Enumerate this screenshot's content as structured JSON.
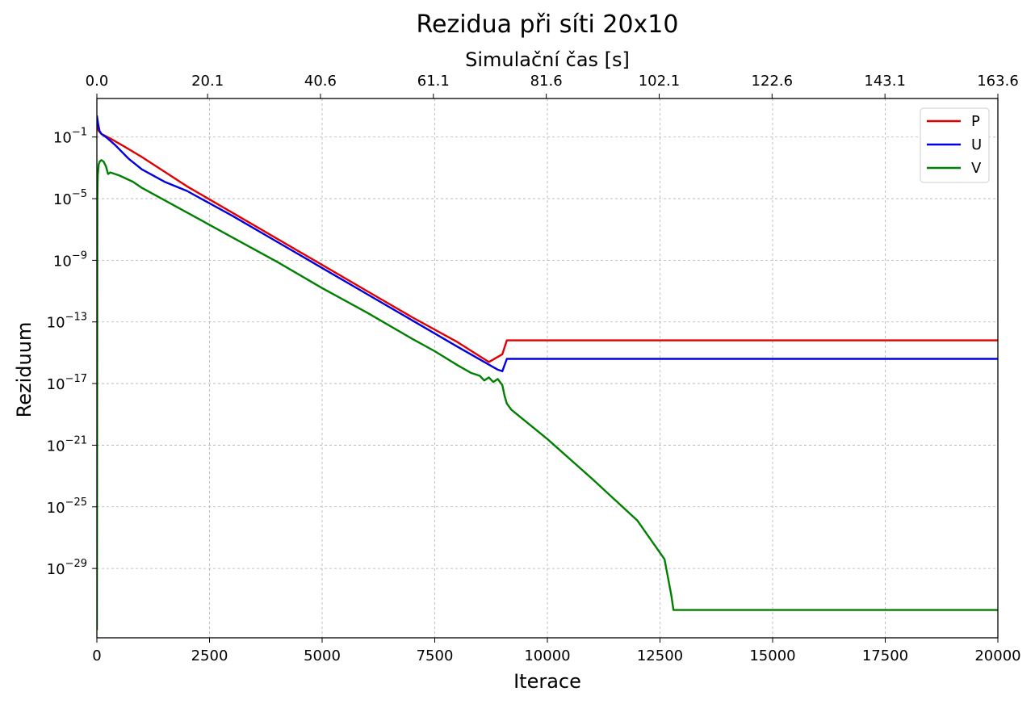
{
  "chart_data": {
    "type": "line",
    "title": "Rezidua při síti 20x10",
    "xlabel": "Iterace",
    "ylabel": "Reziduum",
    "x2label": "Simulační čas [s]",
    "xlim": [
      0,
      20000
    ],
    "x2lim": [
      0,
      163.6
    ],
    "yscale": "log",
    "ylim_exp": [
      -33.5,
      1.5
    ],
    "grid": true,
    "legend_position": "top-right",
    "xticks": [
      0,
      2500,
      5000,
      7500,
      10000,
      12500,
      15000,
      17500,
      20000
    ],
    "xtick_labels": [
      "0",
      "2500",
      "5000",
      "7500",
      "10000",
      "12500",
      "15000",
      "17500",
      "20000"
    ],
    "x2ticks": [
      0,
      20.1,
      40.6,
      61.1,
      81.6,
      102.1,
      122.6,
      143.1,
      163.6
    ],
    "x2tick_labels": [
      "0.0",
      "20.1",
      "40.6",
      "61.1",
      "81.6",
      "102.1",
      "122.6",
      "143.1",
      "163.6"
    ],
    "yticks_exp": [
      -1,
      -5,
      -9,
      -13,
      -17,
      -21,
      -25,
      -29
    ],
    "series": [
      {
        "name": "P",
        "color": "#e00000",
        "x": [
          0,
          40,
          100,
          300,
          600,
          1000,
          2000,
          3000,
          4000,
          5000,
          6000,
          7000,
          8000,
          8700,
          9000,
          9100,
          12000,
          15000,
          20000
        ],
        "log10_y": [
          -0.2,
          -0.6,
          -0.8,
          -1.1,
          -1.6,
          -2.3,
          -4.2,
          -5.9,
          -7.6,
          -9.3,
          -11.0,
          -12.7,
          -14.3,
          -15.6,
          -15.1,
          -14.2,
          -14.2,
          -14.2,
          -14.2
        ]
      },
      {
        "name": "U",
        "color": "#0000e0",
        "x": [
          0,
          30,
          60,
          100,
          200,
          400,
          700,
          1000,
          1500,
          2000,
          3000,
          4000,
          5000,
          6000,
          7000,
          8000,
          8900,
          9000,
          9100,
          12000,
          15000,
          20000
        ],
        "log10_y": [
          0.4,
          -0.2,
          -0.6,
          -0.8,
          -1.0,
          -1.5,
          -2.4,
          -3.1,
          -3.9,
          -4.5,
          -6.1,
          -7.8,
          -9.5,
          -11.2,
          -12.9,
          -14.6,
          -16.1,
          -16.2,
          -15.4,
          -15.4,
          -15.4,
          -15.4
        ]
      },
      {
        "name": "V",
        "color": "#008000",
        "x": [
          0,
          10,
          20,
          40,
          60,
          100,
          150,
          200,
          250,
          300,
          500,
          800,
          1000,
          2000,
          3000,
          4000,
          5000,
          6000,
          7000,
          7500,
          8000,
          8300,
          8500,
          8600,
          8700,
          8800,
          8900,
          9000,
          9050,
          9100,
          9200,
          10000,
          11000,
          12000,
          12600,
          12750,
          12800,
          15000,
          20000
        ],
        "log10_y": [
          -33.0,
          -5.0,
          -3.5,
          -2.8,
          -2.6,
          -2.5,
          -2.6,
          -2.9,
          -3.4,
          -3.3,
          -3.5,
          -3.9,
          -4.3,
          -5.9,
          -7.5,
          -9.1,
          -10.8,
          -12.4,
          -14.1,
          -14.9,
          -15.8,
          -16.3,
          -16.5,
          -16.8,
          -16.6,
          -16.9,
          -16.7,
          -17.1,
          -17.8,
          -18.3,
          -18.7,
          -20.6,
          -23.2,
          -25.9,
          -28.4,
          -30.7,
          -31.7,
          -31.7,
          -31.7
        ]
      }
    ]
  }
}
